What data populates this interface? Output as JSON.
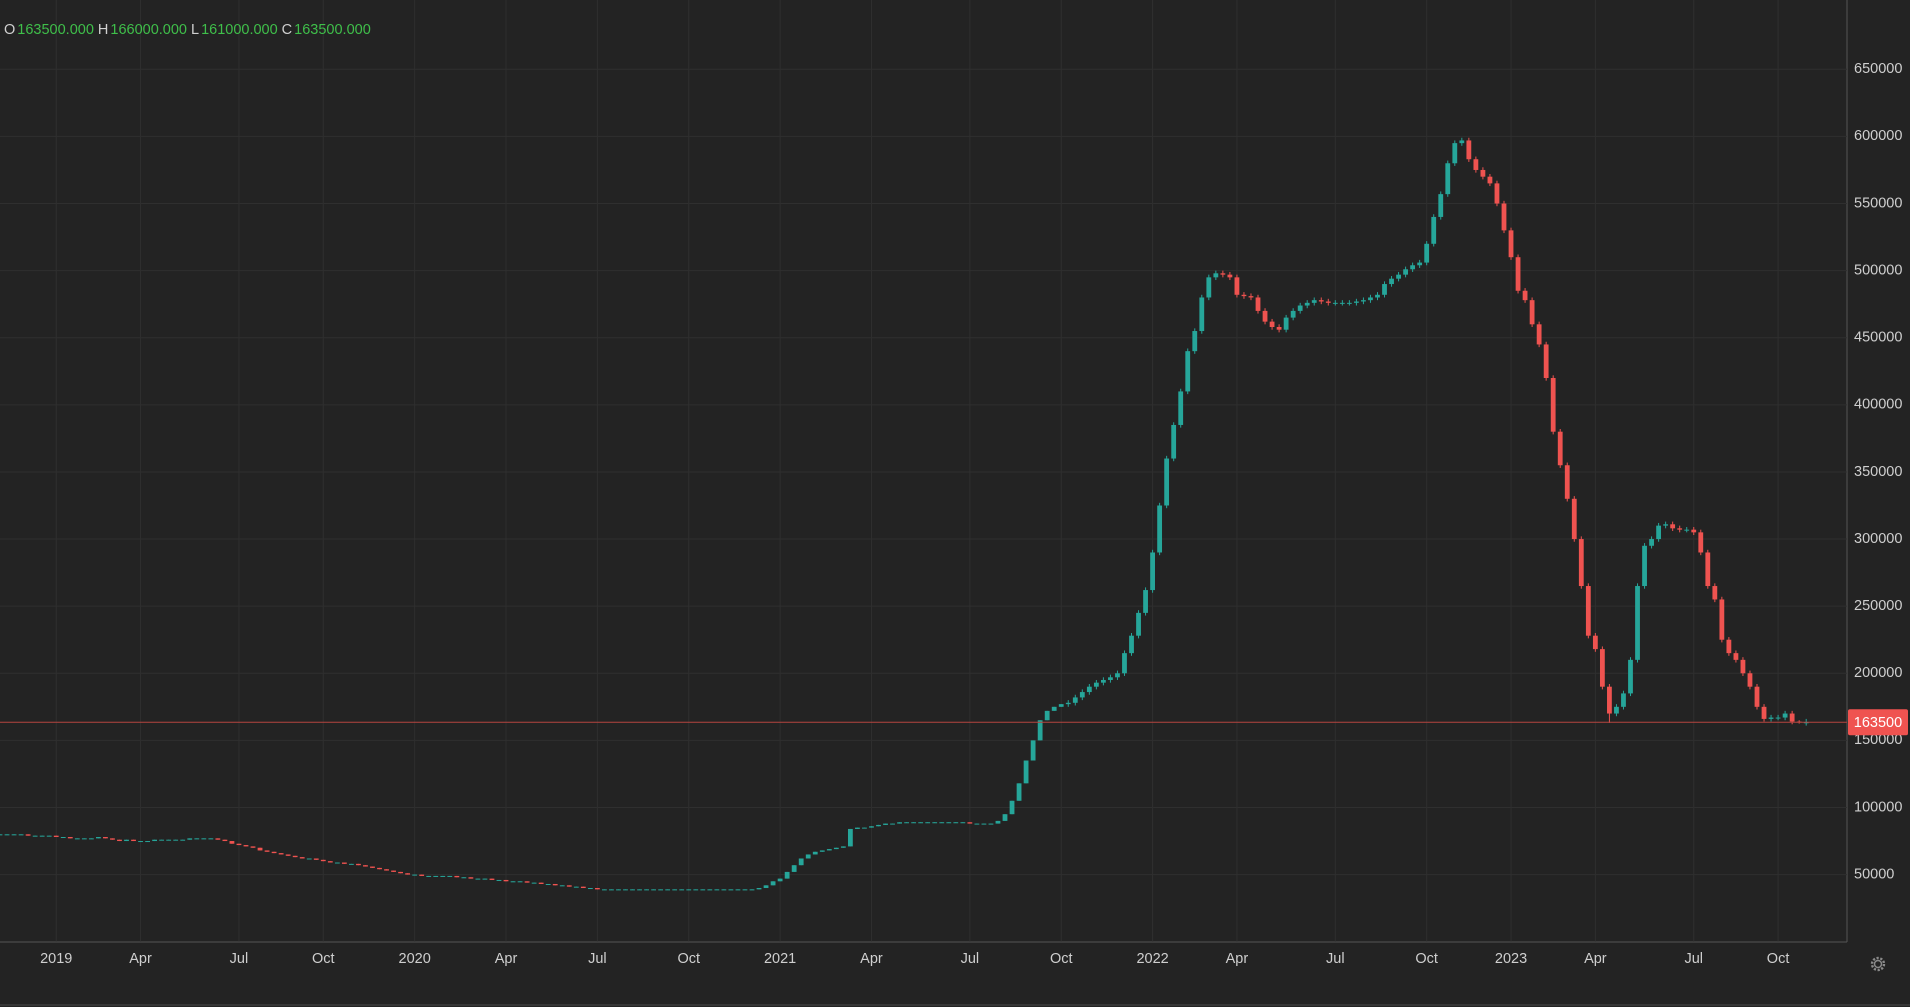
{
  "header": {
    "items": [
      {
        "key": "O",
        "value": "163500.000"
      },
      {
        "key": "H",
        "value": "166000.000"
      },
      {
        "key": "L",
        "value": "161000.000"
      },
      {
        "key": "C",
        "value": "163500.000"
      }
    ]
  },
  "chart_data": {
    "type": "candlestick",
    "up_color": "#26a69a",
    "down_color": "#ef5350",
    "grid": true,
    "y_axis_side": "right",
    "ylim": [
      0,
      700000
    ],
    "yticks": [
      50000,
      100000,
      150000,
      200000,
      250000,
      300000,
      350000,
      400000,
      450000,
      500000,
      550000,
      600000,
      650000
    ],
    "last_price": 163500,
    "categories": [
      null,
      null,
      null,
      null,
      null,
      null,
      null,
      null,
      "2019",
      null,
      null,
      null,
      null,
      null,
      null,
      null,
      null,
      null,
      null,
      null,
      "Apr",
      null,
      null,
      null,
      null,
      null,
      null,
      null,
      null,
      null,
      null,
      null,
      null,
      null,
      "Jul",
      null,
      null,
      null,
      null,
      null,
      null,
      null,
      null,
      null,
      null,
      null,
      "Oct",
      null,
      null,
      null,
      null,
      null,
      null,
      null,
      null,
      null,
      null,
      null,
      null,
      "2020",
      null,
      null,
      null,
      null,
      null,
      null,
      null,
      null,
      null,
      null,
      null,
      null,
      "Apr",
      null,
      null,
      null,
      null,
      null,
      null,
      null,
      null,
      null,
      null,
      null,
      null,
      "Jul",
      null,
      null,
      null,
      null,
      null,
      null,
      null,
      null,
      null,
      null,
      null,
      null,
      "Oct",
      null,
      null,
      null,
      null,
      null,
      null,
      null,
      null,
      null,
      null,
      null,
      null,
      "2021",
      null,
      null,
      null,
      null,
      null,
      null,
      null,
      null,
      null,
      null,
      null,
      null,
      "Apr",
      null,
      null,
      null,
      null,
      null,
      null,
      null,
      null,
      null,
      null,
      null,
      null,
      null,
      "Jul",
      null,
      null,
      null,
      null,
      null,
      null,
      null,
      null,
      null,
      null,
      null,
      null,
      "Oct",
      null,
      null,
      null,
      null,
      null,
      null,
      null,
      null,
      null,
      null,
      null,
      null,
      "2022",
      null,
      null,
      null,
      null,
      null,
      null,
      null,
      null,
      null,
      null,
      null,
      "Apr",
      null,
      null,
      null,
      null,
      null,
      null,
      null,
      null,
      null,
      null,
      null,
      null,
      null,
      "Jul",
      null,
      null,
      null,
      null,
      null,
      null,
      null,
      null,
      null,
      null,
      null,
      null,
      "Oct",
      null,
      null,
      null,
      null,
      null,
      null,
      null,
      null,
      null,
      null,
      null,
      "2023",
      null,
      null,
      null,
      null,
      null,
      null,
      null,
      null,
      null,
      null,
      null,
      "Apr",
      null,
      null,
      null,
      null,
      null,
      null,
      null,
      null,
      null,
      null,
      null,
      null,
      null,
      "Jul",
      null,
      null,
      null,
      null,
      null,
      null,
      null,
      null,
      null,
      null,
      null,
      "Oct",
      null,
      null,
      null,
      null
    ],
    "open": [
      80000,
      80000,
      80000,
      80000,
      80000,
      79000,
      79000,
      79000,
      79000,
      78000,
      78000,
      77000,
      77000,
      77000,
      77000,
      78000,
      77000,
      76000,
      75000,
      76000,
      75000,
      75000,
      75000,
      76000,
      76000,
      76000,
      76000,
      76000,
      77000,
      77000,
      77000,
      77000,
      76000,
      75000,
      73000,
      72000,
      71000,
      70000,
      68000,
      67000,
      66000,
      65000,
      64000,
      63000,
      62000,
      62000,
      61000,
      60000,
      59000,
      59000,
      58000,
      58000,
      57000,
      56000,
      55000,
      54000,
      53000,
      52000,
      51000,
      50000,
      50000,
      49000,
      49000,
      49000,
      49000,
      49000,
      48000,
      48000,
      47000,
      47000,
      47000,
      46000,
      46000,
      45000,
      45000,
      45000,
      44000,
      44000,
      43000,
      43000,
      42000,
      42000,
      41000,
      41000,
      40000,
      40000,
      39000,
      39000,
      39000,
      39000,
      39000,
      39000,
      39000,
      39000,
      39000,
      39000,
      39000,
      39000,
      39000,
      39000,
      39000,
      39000,
      39000,
      39000,
      39000,
      39000,
      39000,
      39000,
      39000,
      40000,
      42000,
      45000,
      47000,
      52000,
      57000,
      62000,
      65000,
      67000,
      68000,
      69000,
      70000,
      71000,
      84000,
      85000,
      85000,
      86000,
      87000,
      88000,
      88000,
      89000,
      89000,
      89000,
      89000,
      89000,
      89000,
      89000,
      89000,
      89000,
      89000,
      88000,
      88000,
      88000,
      88000,
      90000,
      95000,
      105000,
      118000,
      135000,
      150000,
      165000,
      172000,
      175000,
      177000,
      178000,
      182000,
      186000,
      190000,
      193000,
      195000,
      197000,
      200000,
      215000,
      228000,
      245000,
      262000,
      290000,
      325000,
      360000,
      385000,
      410000,
      440000,
      455000,
      480000,
      495000,
      498000,
      497000,
      495000,
      482000,
      481000,
      480000,
      470000,
      462000,
      458000,
      456000,
      465000,
      470000,
      474000,
      476000,
      478000,
      477000,
      476000,
      476000,
      476000,
      476000,
      477000,
      478000,
      480000,
      482000,
      490000,
      494000,
      497000,
      501000,
      504000,
      506000,
      520000,
      540000,
      557000,
      580000,
      595000,
      597000,
      583000,
      575000,
      570000,
      565000,
      550000,
      530000,
      510000,
      485000,
      478000,
      460000,
      445000,
      420000,
      380000,
      355000,
      330000,
      300000,
      265000,
      228000,
      218000,
      190000,
      170000,
      175000,
      185000,
      210000,
      265000,
      295000,
      300000,
      310000,
      311000,
      308000,
      307000,
      307000,
      305000,
      290000,
      265000,
      255000,
      225000,
      215000,
      210000,
      200000,
      190000,
      175000,
      166000,
      167000,
      167000,
      170000,
      164000,
      163500
    ],
    "high": [
      80000,
      80000,
      80000,
      80000,
      80000,
      79000,
      79000,
      79000,
      79000,
      78000,
      78000,
      77000,
      77000,
      77000,
      78000,
      78000,
      77000,
      76000,
      76000,
      76000,
      75000,
      75000,
      76000,
      76000,
      76000,
      76000,
      76000,
      77000,
      77000,
      77000,
      77000,
      77000,
      76000,
      75000,
      73000,
      72000,
      71000,
      70000,
      68000,
      67000,
      66000,
      65000,
      64000,
      63000,
      62000,
      62000,
      61000,
      60000,
      59000,
      59000,
      58000,
      58000,
      57000,
      56000,
      55000,
      54000,
      53000,
      52000,
      51000,
      50000,
      50000,
      49000,
      49000,
      49000,
      49000,
      49000,
      48000,
      48000,
      47000,
      47000,
      47000,
      46000,
      46000,
      45000,
      45000,
      45000,
      44000,
      44000,
      43000,
      43000,
      42000,
      42000,
      41000,
      41000,
      40000,
      40000,
      39000,
      39000,
      39000,
      39000,
      39000,
      39000,
      39000,
      39000,
      39000,
      39000,
      39000,
      39000,
      39000,
      39000,
      39000,
      39000,
      39000,
      39000,
      39000,
      39000,
      39000,
      39000,
      40000,
      42000,
      45000,
      47000,
      52000,
      57000,
      62000,
      65000,
      67000,
      68000,
      69000,
      70000,
      71000,
      84000,
      85000,
      85000,
      86000,
      87000,
      88000,
      88000,
      89000,
      89000,
      89000,
      89000,
      89000,
      89000,
      89000,
      89000,
      89000,
      89000,
      89000,
      88000,
      88000,
      88000,
      90000,
      95000,
      105000,
      118000,
      135000,
      150000,
      165000,
      172000,
      175000,
      177000,
      180000,
      184000,
      188000,
      192000,
      195000,
      197000,
      199000,
      202000,
      217000,
      230000,
      247000,
      264000,
      292000,
      327000,
      362000,
      387000,
      412000,
      442000,
      457000,
      482000,
      497000,
      500000,
      500000,
      499000,
      497000,
      484000,
      483000,
      482000,
      472000,
      464000,
      460000,
      467000,
      472000,
      476000,
      478000,
      480000,
      480000,
      479000,
      478000,
      478000,
      478000,
      479000,
      480000,
      482000,
      484000,
      492000,
      496000,
      499000,
      503000,
      506000,
      508000,
      522000,
      542000,
      559000,
      582000,
      597000,
      599000,
      599000,
      585000,
      577000,
      572000,
      567000,
      552000,
      532000,
      512000,
      487000,
      480000,
      462000,
      447000,
      422000,
      382000,
      357000,
      332000,
      302000,
      267000,
      230000,
      220000,
      192000,
      177000,
      187000,
      212000,
      267000,
      297000,
      302000,
      312000,
      313000,
      313000,
      310000,
      309000,
      309000,
      307000,
      292000,
      267000,
      257000,
      227000,
      217000,
      212000,
      202000,
      192000,
      177000,
      169000,
      169000,
      172000,
      172000,
      165000,
      166000
    ],
    "low": [
      80000,
      80000,
      80000,
      80000,
      79000,
      79000,
      79000,
      79000,
      78000,
      78000,
      77000,
      77000,
      77000,
      77000,
      77000,
      77000,
      76000,
      75000,
      75000,
      75000,
      75000,
      75000,
      75000,
      76000,
      76000,
      76000,
      76000,
      76000,
      77000,
      77000,
      77000,
      76000,
      75000,
      73000,
      72000,
      71000,
      70000,
      68000,
      67000,
      66000,
      65000,
      64000,
      63000,
      62000,
      62000,
      61000,
      60000,
      59000,
      59000,
      58000,
      58000,
      57000,
      56000,
      55000,
      54000,
      53000,
      52000,
      51000,
      50000,
      50000,
      49000,
      49000,
      49000,
      49000,
      49000,
      48000,
      48000,
      47000,
      47000,
      47000,
      46000,
      46000,
      45000,
      45000,
      45000,
      44000,
      44000,
      43000,
      43000,
      42000,
      42000,
      41000,
      41000,
      40000,
      40000,
      39000,
      39000,
      39000,
      39000,
      39000,
      39000,
      39000,
      39000,
      39000,
      39000,
      39000,
      39000,
      39000,
      39000,
      39000,
      39000,
      39000,
      39000,
      39000,
      39000,
      39000,
      39000,
      39000,
      39000,
      40000,
      42000,
      45000,
      47000,
      52000,
      57000,
      62000,
      65000,
      67000,
      68000,
      69000,
      70000,
      71000,
      84000,
      85000,
      85000,
      86000,
      87000,
      88000,
      88000,
      89000,
      89000,
      89000,
      89000,
      89000,
      89000,
      89000,
      89000,
      89000,
      88000,
      88000,
      88000,
      88000,
      88000,
      90000,
      95000,
      105000,
      118000,
      135000,
      150000,
      165000,
      172000,
      175000,
      175000,
      176000,
      180000,
      184000,
      188000,
      191000,
      193000,
      195000,
      198000,
      213000,
      226000,
      243000,
      260000,
      288000,
      323000,
      358000,
      383000,
      408000,
      438000,
      453000,
      478000,
      493000,
      495000,
      493000,
      480000,
      479000,
      478000,
      468000,
      460000,
      456000,
      454000,
      454000,
      463000,
      468000,
      472000,
      474000,
      475000,
      474000,
      474000,
      474000,
      474000,
      474000,
      475000,
      476000,
      478000,
      480000,
      488000,
      492000,
      495000,
      499000,
      502000,
      504000,
      518000,
      538000,
      555000,
      578000,
      593000,
      581000,
      573000,
      568000,
      563000,
      548000,
      528000,
      508000,
      483000,
      476000,
      458000,
      443000,
      418000,
      378000,
      353000,
      328000,
      298000,
      263000,
      226000,
      216000,
      188000,
      163000,
      168000,
      173000,
      183000,
      208000,
      263000,
      293000,
      298000,
      308000,
      306000,
      305000,
      305000,
      303000,
      288000,
      263000,
      253000,
      223000,
      213000,
      208000,
      198000,
      188000,
      173000,
      164000,
      164000,
      165000,
      165000,
      162000,
      162500,
      161000
    ],
    "close": [
      80000,
      80000,
      80000,
      80000,
      79000,
      79000,
      79000,
      79000,
      78000,
      78000,
      77000,
      77000,
      77000,
      77000,
      78000,
      77000,
      76000,
      75000,
      76000,
      75000,
      75000,
      75000,
      76000,
      76000,
      76000,
      76000,
      76000,
      77000,
      77000,
      77000,
      77000,
      76000,
      75000,
      73000,
      72000,
      71000,
      70000,
      68000,
      67000,
      66000,
      65000,
      64000,
      63000,
      62000,
      62000,
      61000,
      60000,
      59000,
      59000,
      58000,
      58000,
      57000,
      56000,
      55000,
      54000,
      53000,
      52000,
      51000,
      50000,
      50000,
      49000,
      49000,
      49000,
      49000,
      49000,
      48000,
      48000,
      47000,
      47000,
      47000,
      46000,
      46000,
      45000,
      45000,
      45000,
      44000,
      44000,
      43000,
      43000,
      42000,
      42000,
      41000,
      41000,
      40000,
      40000,
      39000,
      39000,
      39000,
      39000,
      39000,
      39000,
      39000,
      39000,
      39000,
      39000,
      39000,
      39000,
      39000,
      39000,
      39000,
      39000,
      39000,
      39000,
      39000,
      39000,
      39000,
      39000,
      39000,
      40000,
      42000,
      45000,
      47000,
      52000,
      57000,
      62000,
      65000,
      67000,
      68000,
      69000,
      70000,
      71000,
      84000,
      85000,
      85000,
      86000,
      87000,
      88000,
      88000,
      89000,
      89000,
      89000,
      89000,
      89000,
      89000,
      89000,
      89000,
      89000,
      89000,
      88000,
      88000,
      88000,
      88000,
      90000,
      95000,
      105000,
      118000,
      135000,
      150000,
      165000,
      172000,
      175000,
      177000,
      178000,
      182000,
      186000,
      190000,
      193000,
      195000,
      197000,
      200000,
      215000,
      228000,
      245000,
      262000,
      290000,
      325000,
      360000,
      385000,
      410000,
      440000,
      455000,
      480000,
      495000,
      498000,
      497000,
      495000,
      482000,
      481000,
      480000,
      470000,
      462000,
      458000,
      456000,
      465000,
      470000,
      474000,
      476000,
      478000,
      477000,
      476000,
      476000,
      476000,
      476000,
      477000,
      478000,
      480000,
      482000,
      490000,
      494000,
      497000,
      501000,
      504000,
      506000,
      520000,
      540000,
      557000,
      580000,
      595000,
      597000,
      583000,
      575000,
      570000,
      565000,
      550000,
      530000,
      510000,
      485000,
      478000,
      460000,
      445000,
      420000,
      380000,
      355000,
      330000,
      300000,
      265000,
      228000,
      218000,
      190000,
      170000,
      175000,
      185000,
      210000,
      265000,
      295000,
      300000,
      310000,
      311000,
      308000,
      307000,
      307000,
      305000,
      290000,
      265000,
      255000,
      225000,
      215000,
      210000,
      200000,
      190000,
      175000,
      166000,
      167000,
      167000,
      170000,
      164000,
      163500,
      163500
    ]
  }
}
